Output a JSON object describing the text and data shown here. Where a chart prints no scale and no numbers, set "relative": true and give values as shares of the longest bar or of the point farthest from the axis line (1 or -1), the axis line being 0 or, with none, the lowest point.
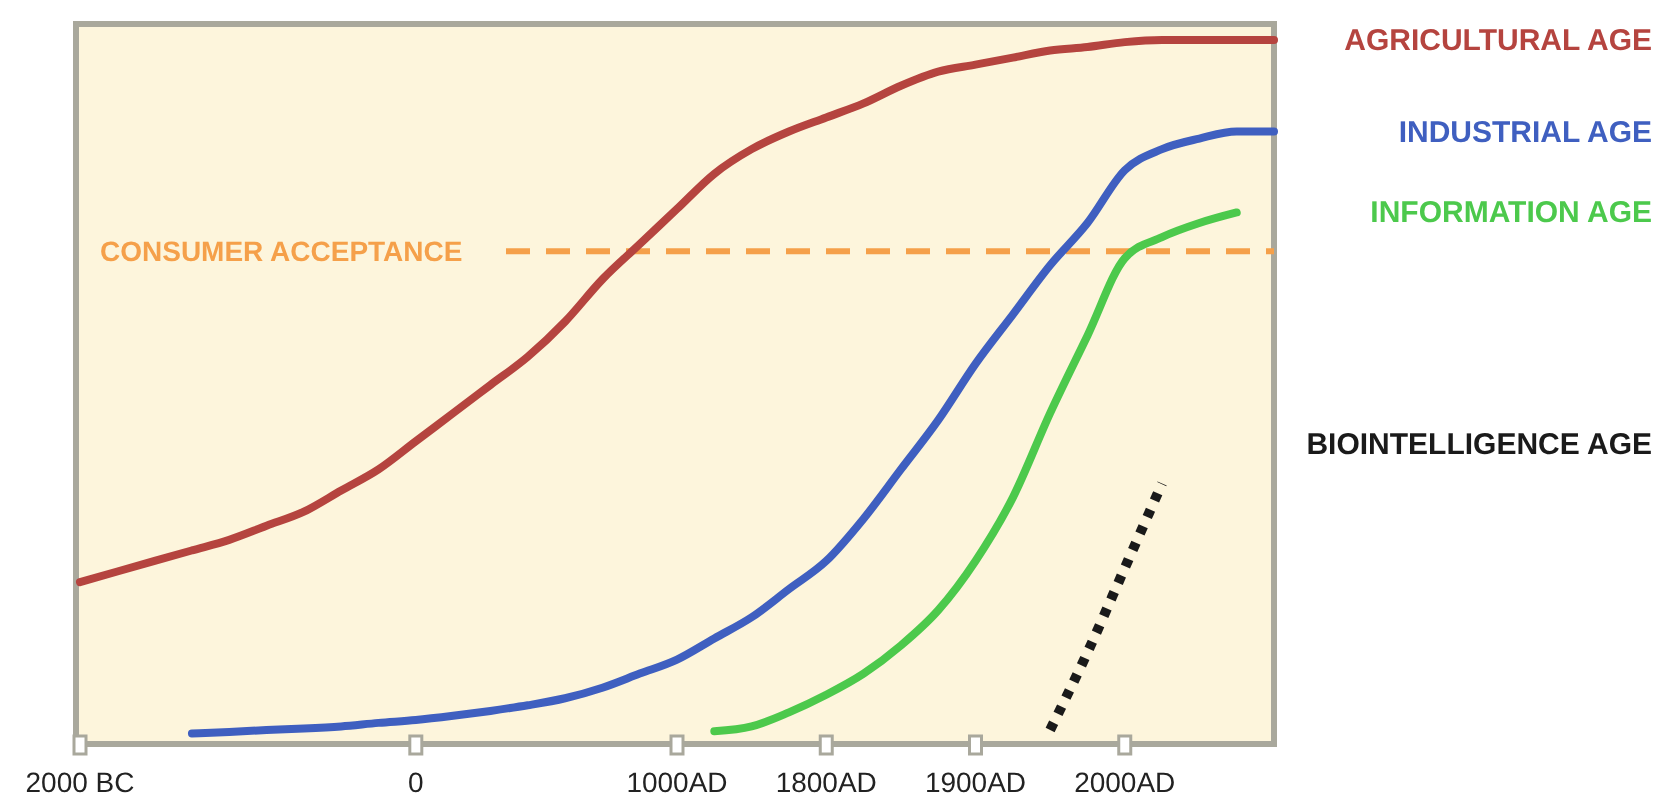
{
  "chart_data": {
    "type": "line",
    "relative": true,
    "legend": "right",
    "categories": [
      "2000 BC",
      null,
      null,
      null,
      null,
      null,
      null,
      null,
      null,
      "0",
      null,
      null,
      null,
      null,
      null,
      null,
      "1000AD",
      null,
      null,
      null,
      "1800AD",
      null,
      null,
      null,
      "1900AD",
      null,
      null,
      null,
      "2000AD",
      null,
      null,
      null,
      null
    ],
    "series": [
      {
        "name": "AGRICULTURAL AGE",
        "color": "#b5443f",
        "values": [
          0.23,
          0.245,
          0.26,
          0.275,
          0.29,
          0.31,
          0.33,
          0.36,
          0.39,
          0.43,
          0.47,
          0.51,
          0.55,
          0.6,
          0.66,
          0.71,
          0.76,
          0.81,
          0.845,
          0.87,
          0.89,
          0.91,
          0.935,
          0.955,
          0.965,
          0.975,
          0.985,
          0.99,
          0.997,
          1,
          1,
          1,
          1
        ]
      },
      {
        "name": "INDUSTRIAL AGE",
        "color": "#3f5fc0",
        "values": [
          null,
          null,
          null,
          0.015,
          0.017,
          0.02,
          0.022,
          0.025,
          0.03,
          0.034,
          0.04,
          0.047,
          0.055,
          0.065,
          0.08,
          0.1,
          0.12,
          0.15,
          0.18,
          0.22,
          0.26,
          0.32,
          0.39,
          0.46,
          0.54,
          0.61,
          0.68,
          0.74,
          0.815,
          0.845,
          0.86,
          0.87,
          0.87
        ]
      },
      {
        "name": "INFORMATION AGE",
        "color": "#4cc94c",
        "values": [
          null,
          null,
          null,
          null,
          null,
          null,
          null,
          null,
          null,
          null,
          null,
          null,
          null,
          null,
          null,
          null,
          null,
          0.018,
          0.025,
          0.045,
          0.07,
          0.1,
          0.14,
          0.19,
          0.26,
          0.35,
          0.47,
          0.58,
          0.69,
          0.72,
          0.74,
          0.755,
          null
        ]
      },
      {
        "name": "BIOINTELLIGENCE AGE",
        "color": "#1a1a1a",
        "line_style": "dotted",
        "values": [
          null,
          null,
          null,
          null,
          null,
          null,
          null,
          null,
          null,
          null,
          null,
          null,
          null,
          null,
          null,
          null,
          null,
          null,
          null,
          null,
          null,
          null,
          null,
          null,
          null,
          null,
          0.02,
          0.13,
          0.25,
          0.37,
          null,
          null,
          null
        ]
      }
    ],
    "ref_lines": [
      {
        "axis": "y",
        "value": 0.7,
        "label": "CONSUMER ACCEPTANCE",
        "color": "#f5a04a",
        "line_style": "dashed"
      }
    ]
  }
}
